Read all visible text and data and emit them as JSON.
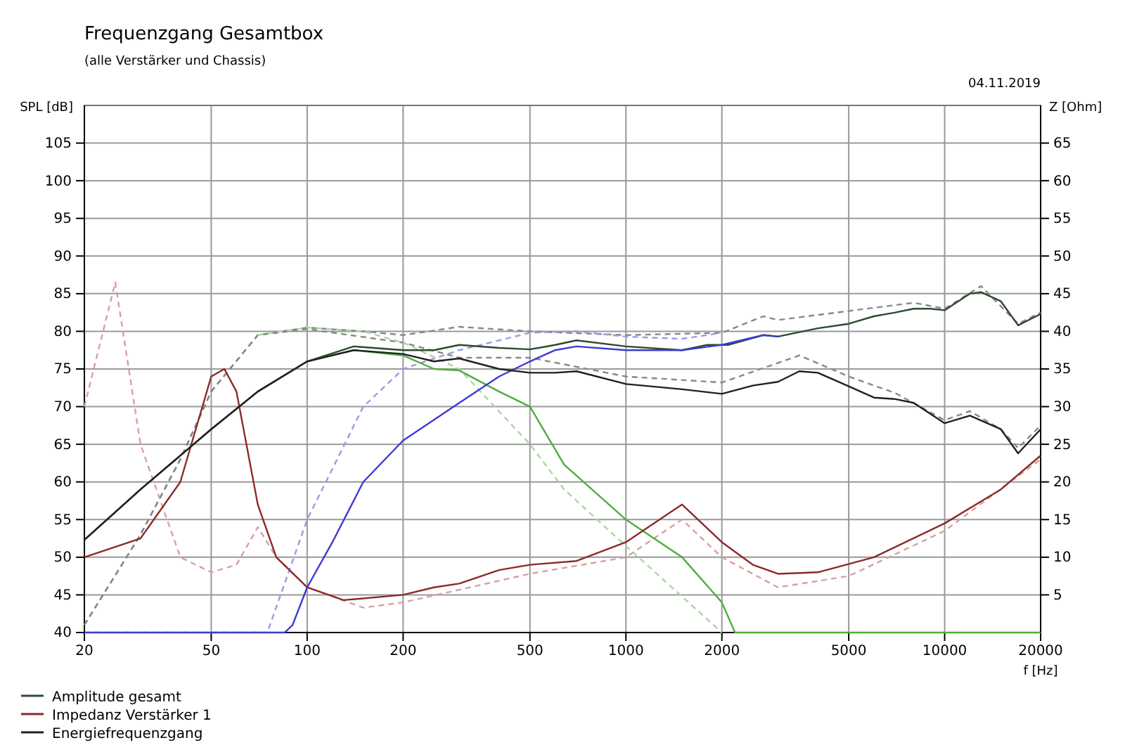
{
  "chart_data": {
    "type": "line",
    "title": "Frequenzgang Gesamtbox",
    "subtitle": "(alle Verstärker und Chassis)",
    "xlabel": "f [Hz]",
    "ylabel": "SPL [dB]",
    "y2label": "Z [Ohm]",
    "annotations": [
      "04.11.2019"
    ],
    "log": "x",
    "grid": true,
    "legend": "bottom",
    "xlim": [
      20,
      20000
    ],
    "xticks": [
      20,
      50,
      100,
      200,
      500,
      1000,
      2000,
      5000,
      10000,
      20000
    ],
    "ylim": [
      40,
      110
    ],
    "yticks": [
      40,
      45,
      50,
      55,
      60,
      65,
      70,
      75,
      80,
      85,
      90,
      95,
      100,
      105
    ],
    "y2lim": [
      0,
      70
    ],
    "y2ticks": [
      5,
      10,
      15,
      20,
      25,
      30,
      35,
      40,
      45,
      50,
      55,
      60,
      65
    ],
    "series": [
      {
        "color": "#888888",
        "line_style": "dashed",
        "x": [
          20,
          30,
          40,
          50,
          70,
          100,
          150,
          200,
          300,
          500,
          1000,
          2000,
          2700,
          3000,
          5000,
          8000,
          10000,
          13000,
          17000,
          20000
        ],
        "values": [
          41,
          53,
          63,
          72,
          79.5,
          80.5,
          80,
          79.5,
          80.6,
          80,
          79.5,
          79.8,
          82,
          81.5,
          82.7,
          83.8,
          83,
          86,
          81,
          82.5
        ]
      },
      {
        "color": "#888888",
        "line_style": "dashed",
        "x": [
          20,
          30,
          40,
          50,
          70,
          100,
          200,
          300,
          500,
          1000,
          2000,
          3000,
          3500,
          5000,
          7000,
          10000,
          12000,
          15000,
          17000,
          20000
        ],
        "values": [
          41,
          53,
          63,
          72,
          79.5,
          80.3,
          78.5,
          76.5,
          76.5,
          74,
          73.2,
          75.8,
          76.8,
          74,
          71.8,
          68.2,
          69.4,
          67,
          64.5,
          67.5
        ]
      },
      {
        "color": "#9a9ae8",
        "line_style": "dashed",
        "x": [
          20,
          75,
          100,
          150,
          200,
          300,
          500,
          700,
          1000,
          1500,
          2000
        ],
        "values": [
          40,
          40,
          55,
          70,
          75,
          77.5,
          79.8,
          80,
          79.3,
          79,
          79.8
        ]
      },
      {
        "color": "#a8d8a0",
        "line_style": "dashed",
        "x": [
          70,
          100,
          150,
          200,
          300,
          500,
          640,
          1000,
          2000
        ],
        "values": [
          79.5,
          80.5,
          80,
          78.5,
          75,
          65,
          59,
          51.5,
          40
        ]
      },
      {
        "color": "#d8a0a0",
        "line_style": "dashed",
        "axis": "y2",
        "x": [
          20,
          25,
          30,
          40,
          50,
          60,
          70,
          80,
          100,
          150,
          200,
          500,
          1000,
          1500,
          2000,
          3000,
          5000,
          10000,
          20000
        ],
        "values": [
          30,
          46.5,
          25,
          10,
          8,
          9,
          14,
          10,
          6,
          3.3,
          4,
          7.8,
          10,
          15,
          10,
          6,
          7.5,
          13.5,
          23
        ]
      },
      {
        "name": "Amplitude gesamt",
        "color": "#2e4a2e",
        "x": [
          20,
          30,
          50,
          70,
          100,
          140,
          200,
          250,
          300,
          400,
          500,
          600,
          700,
          1000,
          1500,
          1800,
          2100,
          2700,
          3000,
          4000,
          5000,
          6000,
          7000,
          8000,
          9000,
          10000,
          12000,
          13000,
          15000,
          17000,
          20000
        ],
        "values": [
          52.3,
          59,
          67,
          72,
          76,
          78,
          77.5,
          77.5,
          78.2,
          77.8,
          77.6,
          78.2,
          78.8,
          78,
          77.5,
          78.2,
          78.2,
          79.5,
          79.3,
          80.4,
          81,
          82,
          82.5,
          83,
          83,
          82.8,
          85,
          85.2,
          84,
          80.8,
          82.3
        ]
      },
      {
        "color": "#4caf3c",
        "x": [
          100,
          140,
          200,
          250,
          300,
          400,
          500,
          640,
          1000,
          1500,
          2000,
          2200,
          20000
        ],
        "values": [
          76,
          77.5,
          76.8,
          75,
          74.8,
          72,
          70,
          62.3,
          55,
          50,
          44,
          40,
          40
        ]
      },
      {
        "color": "#3b3bd6",
        "x": [
          20,
          85,
          90,
          100,
          120,
          150,
          200,
          300,
          400,
          500,
          600,
          700,
          1000,
          1500,
          2000,
          2700,
          3000
        ],
        "values": [
          40,
          40,
          41,
          46,
          52,
          60,
          65.5,
          70.5,
          74,
          76,
          77.5,
          78,
          77.5,
          77.5,
          78.2,
          79.5,
          79.3
        ]
      },
      {
        "name": "Impedanz Verstärker 1",
        "color": "#8b2a2a",
        "axis": "y2",
        "x": [
          20,
          30,
          40,
          50,
          55,
          60,
          70,
          80,
          100,
          130,
          200,
          250,
          300,
          400,
          500,
          700,
          1000,
          1500,
          2000,
          2500,
          3000,
          4000,
          6000,
          10000,
          15000,
          20000
        ],
        "values": [
          10,
          12.5,
          20,
          34,
          35,
          32,
          17,
          10,
          6,
          4.3,
          5,
          6,
          6.5,
          8.3,
          9,
          9.5,
          12,
          17,
          12,
          9,
          7.8,
          8,
          10,
          14.5,
          19,
          23.5
        ]
      },
      {
        "name": "Energiefrequenzgang",
        "color": "#202020",
        "x": [
          20,
          30,
          50,
          70,
          100,
          140,
          200,
          250,
          300,
          400,
          500,
          600,
          700,
          1000,
          1500,
          2000,
          2500,
          3000,
          3500,
          4000,
          5000,
          6000,
          7000,
          8000,
          10000,
          12000,
          15000,
          17000,
          20000
        ],
        "values": [
          52.3,
          59,
          67,
          72,
          76,
          77.5,
          77,
          76,
          76.4,
          75,
          74.5,
          74.5,
          74.7,
          73,
          72.3,
          71.7,
          72.8,
          73.3,
          74.7,
          74.5,
          72.7,
          71.2,
          71,
          70.5,
          67.8,
          68.8,
          67,
          63.8,
          67
        ]
      }
    ]
  }
}
